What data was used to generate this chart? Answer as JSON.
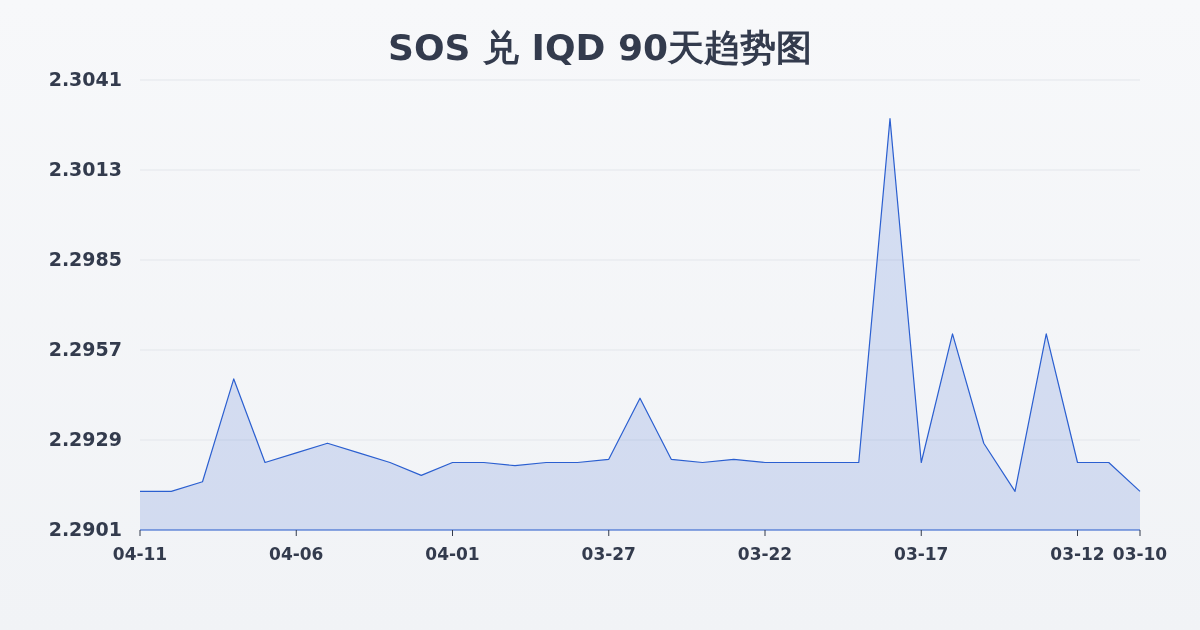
{
  "chart_data": {
    "type": "area",
    "title": "SOS 兑 IQD 90天趋势图",
    "categories": [
      "04-11",
      null,
      null,
      null,
      null,
      "04-06",
      null,
      null,
      null,
      null,
      "04-01",
      null,
      null,
      null,
      null,
      "03-27",
      null,
      null,
      null,
      null,
      "03-22",
      null,
      null,
      null,
      null,
      "03-17",
      null,
      null,
      null,
      null,
      "03-12",
      null,
      "03-10"
    ],
    "values": [
      2.2913,
      2.2913,
      2.2916,
      2.2948,
      2.2922,
      2.2925,
      2.2928,
      2.2925,
      2.2922,
      2.2918,
      2.2922,
      2.2922,
      2.2921,
      2.2922,
      2.2922,
      2.2923,
      2.2942,
      2.2923,
      2.2922,
      2.2923,
      2.2922,
      2.2922,
      2.2922,
      2.2922,
      2.3029,
      2.2922,
      2.2962,
      2.2928,
      2.2913,
      2.2962,
      2.2922,
      2.2922,
      2.2913
    ],
    "color": "#2b5fd0",
    "ylim": [
      2.2901,
      2.3041
    ],
    "yticks": [
      2.2901,
      2.2929,
      2.2957,
      2.2985,
      2.3013,
      2.3041
    ],
    "grid": "y"
  }
}
